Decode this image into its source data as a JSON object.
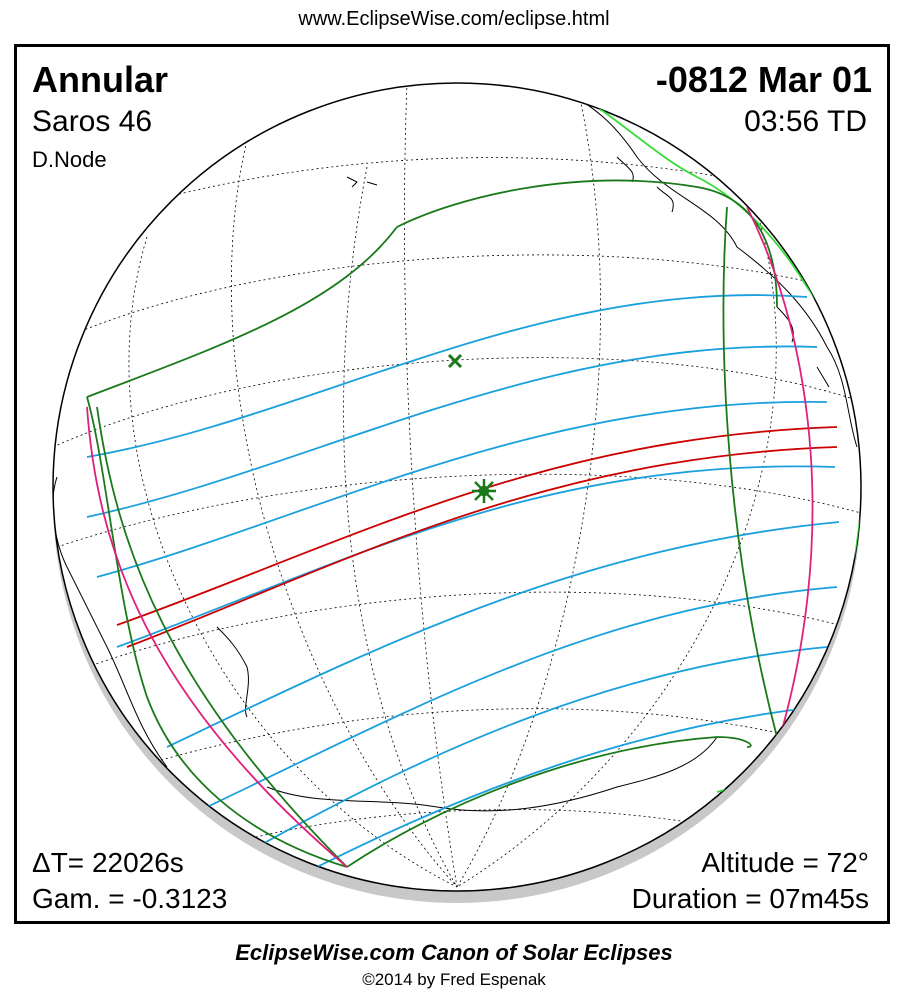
{
  "header": {
    "url": "www.EclipseWise.com/eclipse.html"
  },
  "eclipse": {
    "type": "Annular",
    "saros": "Saros  46",
    "node": "D.Node",
    "date": "-0812 Mar 01",
    "time": "03:56 TD",
    "delta_t": "ΔT=  22026s",
    "gamma": "Gam. = -0.3123",
    "altitude": "Altitude = 72°",
    "duration": "Duration = 07m45s"
  },
  "footer": {
    "title": "EclipseWise.com Canon of Solar Eclipses",
    "copyright": "©2014 by Fred Espenak"
  },
  "colors": {
    "central_path": "#cc0000",
    "penumbra_limits": "#1a7a1a",
    "magnitude_lines": "#1aa0dd",
    "rise_set": "#e0207a",
    "coast_new": "#33dd33",
    "grid": "#000000",
    "shadow": "#c8c8c8"
  },
  "icons": {
    "greatest_eclipse": "asterisk-marker",
    "subsolar_point": "x-marker"
  }
}
